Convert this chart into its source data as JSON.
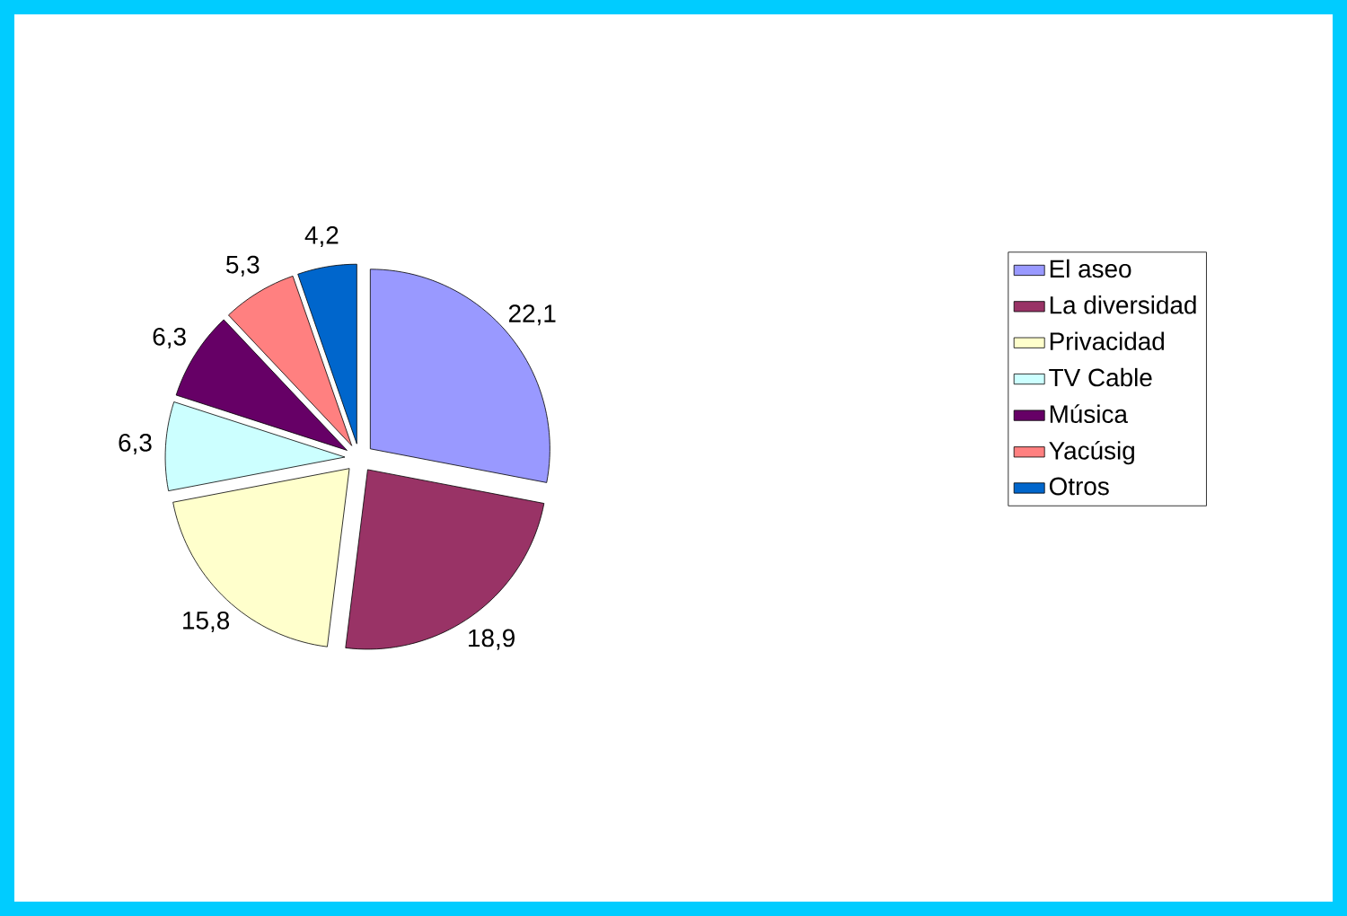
{
  "chart_data": {
    "type": "pie",
    "categories": [
      "El aseo",
      "La diversidad",
      "Privacidad",
      "TV Cable",
      "Música",
      "Yacúsig",
      "Otros"
    ],
    "values": [
      22.1,
      18.9,
      15.8,
      6.3,
      6.3,
      5.3,
      4.2
    ],
    "value_labels": [
      "22,1",
      "18,9",
      "15,8",
      "6,3",
      "6,3",
      "5,3",
      "4,2"
    ],
    "colors": [
      "#9999ff",
      "#993366",
      "#ffffcc",
      "#ccffff",
      "#660066",
      "#ff8080",
      "#0066cc"
    ],
    "legend": "right"
  }
}
